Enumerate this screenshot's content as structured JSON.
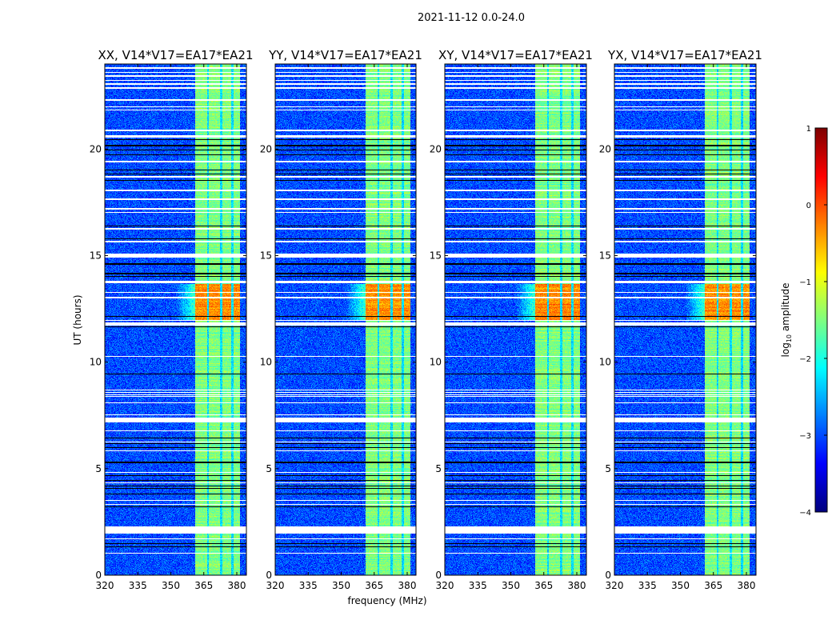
{
  "chart_data": {
    "type": "heatmap",
    "suptitle": "2021-11-12 0.0-24.0",
    "panels": [
      {
        "title": "XX, V14*V17=EA17*EA21"
      },
      {
        "title": "YY, V14*V17=EA17*EA21"
      },
      {
        "title": "XY, V14*V17=EA17*EA21"
      },
      {
        "title": "YX, V14*V17=EA17*EA21"
      }
    ],
    "xlabel": "frequency (MHz)",
    "ylabel": "UT (hours)",
    "xlim": [
      320,
      384.4
    ],
    "ylim": [
      0,
      24
    ],
    "xticks": [
      320,
      335,
      350,
      365,
      380
    ],
    "xtick_labels": [
      "320",
      "335",
      "350",
      "365",
      "380"
    ],
    "yticks": [
      0,
      5,
      10,
      15,
      20
    ],
    "ytick_labels": [
      "0",
      "5",
      "10",
      "15",
      "20"
    ],
    "colorbar": {
      "label_main": "log",
      "label_sub": "10",
      "label_rest": " amplitude",
      "range": [
        -4,
        1
      ],
      "colormap": "jet",
      "ticks": [
        1,
        0,
        -1,
        -2,
        -3,
        -4
      ],
      "tick_labels": [
        "1",
        "0",
        "−1",
        "−2",
        "−3",
        "−4"
      ]
    },
    "background_level": -3.0,
    "bands_mhz": [
      [
        361,
        366.2
      ],
      [
        367.2,
        372.2
      ],
      [
        373.2,
        377.2
      ],
      [
        378.2,
        381.2
      ]
    ],
    "band_level": -1.5,
    "bright_interval": {
      "hours": [
        12.0,
        13.7
      ],
      "level": -0.3
    },
    "flagged_hours": [
      [
        23.8,
        23.86
      ],
      [
        23.59,
        23.65
      ],
      [
        23.43,
        23.49
      ],
      [
        23.21,
        23.27
      ],
      [
        23.05,
        23.11
      ],
      [
        22.85,
        22.91
      ],
      [
        22.3,
        22.36
      ],
      [
        21.97,
        22.03
      ],
      [
        21.82,
        21.88
      ],
      [
        20.86,
        20.92
      ],
      [
        20.55,
        20.67
      ],
      [
        19.4,
        19.46
      ],
      [
        18.68,
        18.74
      ],
      [
        18.06,
        18.12
      ],
      [
        17.64,
        17.7
      ],
      [
        17.18,
        17.24
      ],
      [
        17.02,
        17.08
      ],
      [
        16.24,
        16.3
      ],
      [
        15.64,
        15.7
      ],
      [
        14.92,
        15.12
      ],
      [
        13.72,
        13.85
      ],
      [
        13.26,
        13.32
      ],
      [
        13.01,
        13.07
      ],
      [
        11.95,
        12.01
      ],
      [
        11.72,
        11.88
      ],
      [
        10.26,
        10.32
      ],
      [
        8.68,
        8.74
      ],
      [
        8.57,
        8.63
      ],
      [
        8.46,
        8.52
      ],
      [
        8.38,
        8.44
      ],
      [
        8.08,
        8.14
      ],
      [
        7.52,
        7.58
      ],
      [
        7.2,
        7.4
      ],
      [
        6.77,
        6.83
      ],
      [
        6.24,
        6.3
      ],
      [
        5.83,
        5.89
      ],
      [
        4.81,
        4.87
      ],
      [
        4.33,
        4.39
      ],
      [
        3.5,
        3.56
      ],
      [
        3.31,
        3.37
      ],
      [
        1.99,
        2.3
      ],
      [
        1.7,
        1.76
      ],
      [
        1.02,
        1.08
      ]
    ],
    "black_rows_hours": [
      20.47,
      20.18,
      19.99,
      19.74,
      19.05,
      18.86,
      18.55,
      16.4,
      15.82,
      14.65,
      14.6,
      14.17,
      14.05,
      12.17,
      11.68,
      9.46,
      6.46,
      6.2,
      6.01,
      5.33,
      5.29,
      4.69,
      4.47,
      4.21,
      4.09,
      3.83,
      3.23,
      1.5,
      1.35
    ]
  }
}
